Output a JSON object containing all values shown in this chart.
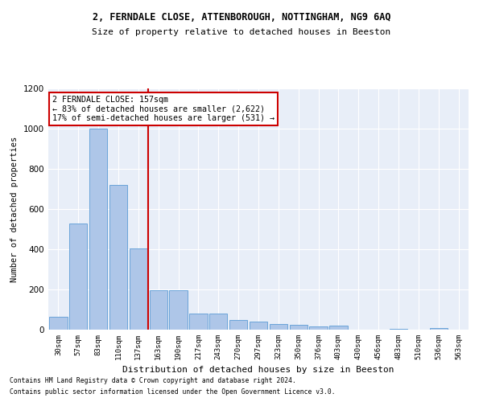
{
  "title1": "2, FERNDALE CLOSE, ATTENBOROUGH, NOTTINGHAM, NG9 6AQ",
  "title2": "Size of property relative to detached houses in Beeston",
  "xlabel": "Distribution of detached houses by size in Beeston",
  "ylabel": "Number of detached properties",
  "bar_labels": [
    "30sqm",
    "57sqm",
    "83sqm",
    "110sqm",
    "137sqm",
    "163sqm",
    "190sqm",
    "217sqm",
    "243sqm",
    "270sqm",
    "297sqm",
    "323sqm",
    "350sqm",
    "376sqm",
    "403sqm",
    "430sqm",
    "456sqm",
    "483sqm",
    "510sqm",
    "536sqm",
    "563sqm"
  ],
  "bar_values": [
    65,
    530,
    1000,
    720,
    405,
    195,
    195,
    80,
    80,
    50,
    40,
    30,
    25,
    15,
    20,
    0,
    0,
    5,
    0,
    10,
    0
  ],
  "bar_color": "#aec6e8",
  "bar_edge_color": "#5b9bd5",
  "vline_x": 4.5,
  "vline_color": "#cc0000",
  "annotation_title": "2 FERNDALE CLOSE: 157sqm",
  "annotation_line1": "← 83% of detached houses are smaller (2,622)",
  "annotation_line2": "17% of semi-detached houses are larger (531) →",
  "annotation_box_color": "#ffffff",
  "annotation_border_color": "#cc0000",
  "footnote1": "Contains HM Land Registry data © Crown copyright and database right 2024.",
  "footnote2": "Contains public sector information licensed under the Open Government Licence v3.0.",
  "ylim": [
    0,
    1200
  ],
  "plot_bg": "#e8eef8",
  "fig_bg": "#ffffff"
}
